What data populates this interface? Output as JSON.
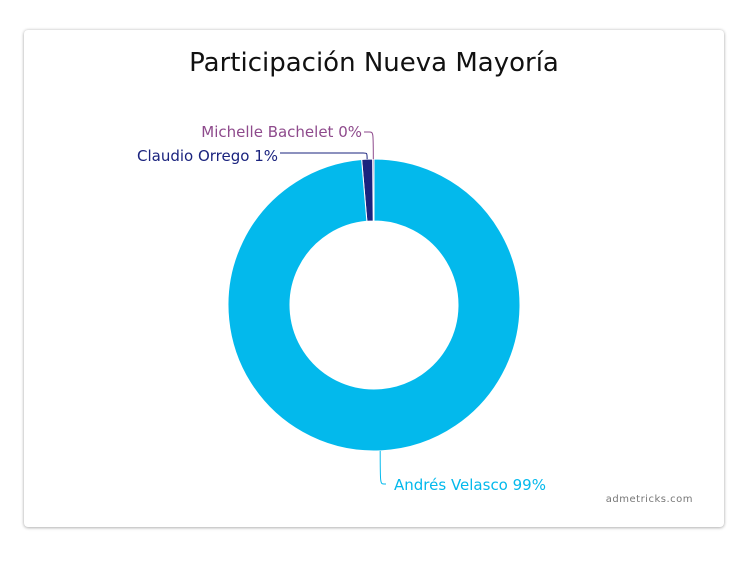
{
  "chart_data": {
    "type": "pie",
    "title": "Participación Nueva Mayoría",
    "slices": [
      {
        "name": "Michelle Bachelet",
        "value": 0.15,
        "label": "Michelle Bachelet 0%",
        "color": "#8e4a8c"
      },
      {
        "name": "Claudio Orrego",
        "value": 1.2,
        "label": "Claudio Orrego 1%",
        "color": "#1a237e"
      },
      {
        "name": "Andrés Velasco",
        "value": 98.65,
        "label": "Andrés Velasco 99%",
        "color": "#03b9ec"
      }
    ],
    "donut": true
  },
  "credit": "admetricks.com"
}
